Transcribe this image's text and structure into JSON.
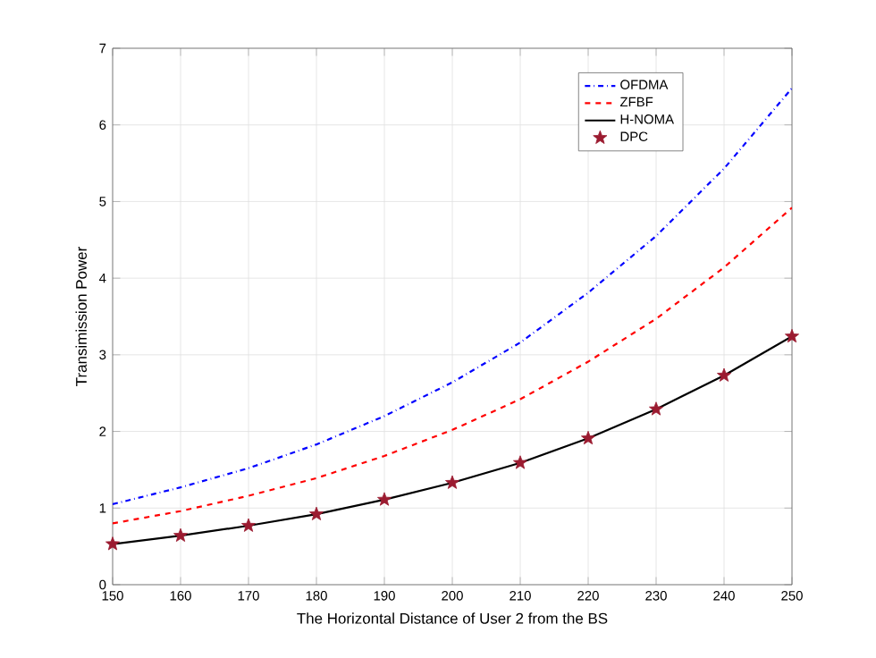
{
  "chart_data": {
    "type": "line",
    "xlabel": "The Horizontal Distance of User 2 from the BS",
    "ylabel": "Transimission Power",
    "x": [
      150,
      160,
      170,
      180,
      190,
      200,
      210,
      220,
      230,
      240,
      250
    ],
    "xlim": [
      150,
      250
    ],
    "xticks": [
      150,
      160,
      170,
      180,
      190,
      200,
      210,
      220,
      230,
      240,
      250
    ],
    "ylim": [
      0,
      7
    ],
    "yticks": [
      0,
      1,
      2,
      3,
      4,
      5,
      6,
      7
    ],
    "grid": true,
    "legend": "top right",
    "series": [
      {
        "name": "OFDMA",
        "color": "#0000ff",
        "line_style": "dashdot",
        "marker": "none",
        "values": [
          1.05,
          1.27,
          1.52,
          1.83,
          2.2,
          2.64,
          3.16,
          3.81,
          4.55,
          5.43,
          6.48
        ]
      },
      {
        "name": "ZFBF",
        "color": "#ff0000",
        "line_style": "dashed",
        "marker": "none",
        "values": [
          0.8,
          0.96,
          1.16,
          1.39,
          1.68,
          2.02,
          2.42,
          2.91,
          3.47,
          4.14,
          4.92
        ]
      },
      {
        "name": "H-NOMA",
        "color": "#000000",
        "line_style": "solid",
        "marker": "none",
        "values": [
          0.53,
          0.64,
          0.77,
          0.92,
          1.11,
          1.33,
          1.59,
          1.91,
          2.29,
          2.73,
          3.24
        ]
      },
      {
        "name": "DPC",
        "type": "scatter",
        "color": "#9b1b30",
        "marker": "star",
        "values": [
          0.53,
          0.64,
          0.77,
          0.92,
          1.11,
          1.33,
          1.59,
          1.91,
          2.29,
          2.73,
          3.24
        ]
      }
    ]
  }
}
